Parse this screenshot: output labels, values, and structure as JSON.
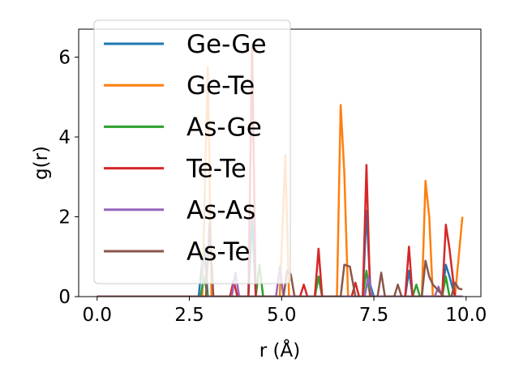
{
  "chart_data": {
    "type": "line",
    "title": "",
    "xlabel": "r (Å)",
    "ylabel": "g(r)",
    "xlim": [
      -0.5,
      10.4
    ],
    "ylim": [
      0,
      6.7
    ],
    "xticks": [
      0.0,
      2.5,
      5.0,
      7.5,
      10.0
    ],
    "xtick_labels": [
      "0.0",
      "2.5",
      "5.0",
      "7.5",
      "10.0"
    ],
    "yticks": [
      0,
      2,
      4,
      6
    ],
    "ytick_labels": [
      "0",
      "2",
      "4",
      "6"
    ],
    "grid": false,
    "legend_position": "top-left",
    "series": [
      {
        "name": "Ge-Ge",
        "color": "#1f77b4",
        "points": [
          [
            0,
            0
          ],
          [
            2.75,
            0
          ],
          [
            2.9,
            1.3
          ],
          [
            3.0,
            0
          ],
          [
            4.1,
            0
          ],
          [
            4.2,
            2.0
          ],
          [
            4.3,
            0
          ],
          [
            5.9,
            0
          ],
          [
            6.0,
            0.5
          ],
          [
            6.1,
            0
          ],
          [
            7.2,
            0
          ],
          [
            7.3,
            2.15
          ],
          [
            7.4,
            0.3
          ],
          [
            7.5,
            0
          ],
          [
            8.35,
            0
          ],
          [
            8.45,
            0.65
          ],
          [
            8.55,
            0
          ],
          [
            9.35,
            0
          ],
          [
            9.45,
            0.8
          ],
          [
            9.55,
            0.5
          ],
          [
            9.7,
            0
          ],
          [
            9.9,
            0
          ]
        ]
      },
      {
        "name": "Ge-Te",
        "color": "#ff7f0e",
        "points": [
          [
            0,
            0
          ],
          [
            2.85,
            0
          ],
          [
            3.0,
            5.75
          ],
          [
            3.1,
            0
          ],
          [
            4.95,
            0
          ],
          [
            5.1,
            3.55
          ],
          [
            5.2,
            0
          ],
          [
            6.5,
            0
          ],
          [
            6.6,
            4.8
          ],
          [
            6.7,
            3.1
          ],
          [
            6.8,
            0
          ],
          [
            8.8,
            0
          ],
          [
            8.9,
            2.9
          ],
          [
            9.0,
            2.0
          ],
          [
            9.1,
            0
          ],
          [
            9.7,
            0
          ],
          [
            9.9,
            2.0
          ]
        ]
      },
      {
        "name": "As-Ge",
        "color": "#2ca02c",
        "points": [
          [
            0,
            0
          ],
          [
            2.8,
            0
          ],
          [
            2.9,
            0.5
          ],
          [
            3.0,
            0
          ],
          [
            4.3,
            0
          ],
          [
            4.4,
            0.8
          ],
          [
            4.5,
            0
          ],
          [
            5.9,
            0
          ],
          [
            6.0,
            0.5
          ],
          [
            6.1,
            0
          ],
          [
            7.2,
            0
          ],
          [
            7.3,
            0.65
          ],
          [
            7.4,
            0
          ],
          [
            8.55,
            0
          ],
          [
            8.65,
            0.3
          ],
          [
            8.75,
            0
          ],
          [
            9.35,
            0
          ],
          [
            9.45,
            0.5
          ],
          [
            9.55,
            0
          ],
          [
            9.9,
            0
          ]
        ]
      },
      {
        "name": "Te-Te",
        "color": "#d62728",
        "points": [
          [
            0,
            0
          ],
          [
            3.6,
            0
          ],
          [
            3.7,
            0.4
          ],
          [
            3.8,
            0
          ],
          [
            4.1,
            0
          ],
          [
            4.2,
            6.3
          ],
          [
            4.3,
            0
          ],
          [
            5.5,
            0
          ],
          [
            5.6,
            0.3
          ],
          [
            5.7,
            0
          ],
          [
            5.9,
            0
          ],
          [
            6.0,
            1.2
          ],
          [
            6.1,
            0
          ],
          [
            6.9,
            0
          ],
          [
            7.0,
            0.35
          ],
          [
            7.1,
            0
          ],
          [
            7.2,
            0
          ],
          [
            7.3,
            3.3
          ],
          [
            7.4,
            0
          ],
          [
            8.35,
            0
          ],
          [
            8.45,
            1.25
          ],
          [
            8.55,
            0
          ],
          [
            9.35,
            0
          ],
          [
            9.45,
            1.8
          ],
          [
            9.55,
            1.2
          ],
          [
            9.7,
            0
          ],
          [
            9.9,
            0
          ]
        ]
      },
      {
        "name": "As-As",
        "color": "#9467bd",
        "points": [
          [
            0,
            0
          ],
          [
            3.65,
            0
          ],
          [
            3.75,
            0.6
          ],
          [
            3.85,
            0
          ],
          [
            4.85,
            0
          ],
          [
            4.95,
            0.75
          ],
          [
            5.05,
            0
          ],
          [
            7.25,
            0
          ],
          [
            7.35,
            0.5
          ],
          [
            7.45,
            0
          ],
          [
            9.15,
            0
          ],
          [
            9.25,
            0.25
          ],
          [
            9.35,
            0
          ],
          [
            9.9,
            0
          ]
        ]
      },
      {
        "name": "As-Te",
        "color": "#8c564b",
        "points": [
          [
            0,
            0
          ],
          [
            2.95,
            0
          ],
          [
            3.05,
            1.85
          ],
          [
            3.15,
            0
          ],
          [
            5.05,
            0
          ],
          [
            5.15,
            0.65
          ],
          [
            5.25,
            0.55
          ],
          [
            5.35,
            0
          ],
          [
            6.6,
            0
          ],
          [
            6.7,
            0.8
          ],
          [
            6.85,
            0.75
          ],
          [
            7.0,
            0
          ],
          [
            7.6,
            0
          ],
          [
            7.7,
            0.6
          ],
          [
            7.8,
            0
          ],
          [
            8.05,
            0
          ],
          [
            8.15,
            0.3
          ],
          [
            8.25,
            0
          ],
          [
            8.8,
            0
          ],
          [
            8.9,
            0.9
          ],
          [
            9.0,
            0.5
          ],
          [
            9.1,
            0.3
          ],
          [
            9.25,
            0.15
          ],
          [
            9.4,
            0
          ],
          [
            9.6,
            0
          ],
          [
            9.7,
            0.35
          ],
          [
            9.8,
            0.2
          ],
          [
            9.9,
            0.18
          ]
        ]
      }
    ]
  }
}
